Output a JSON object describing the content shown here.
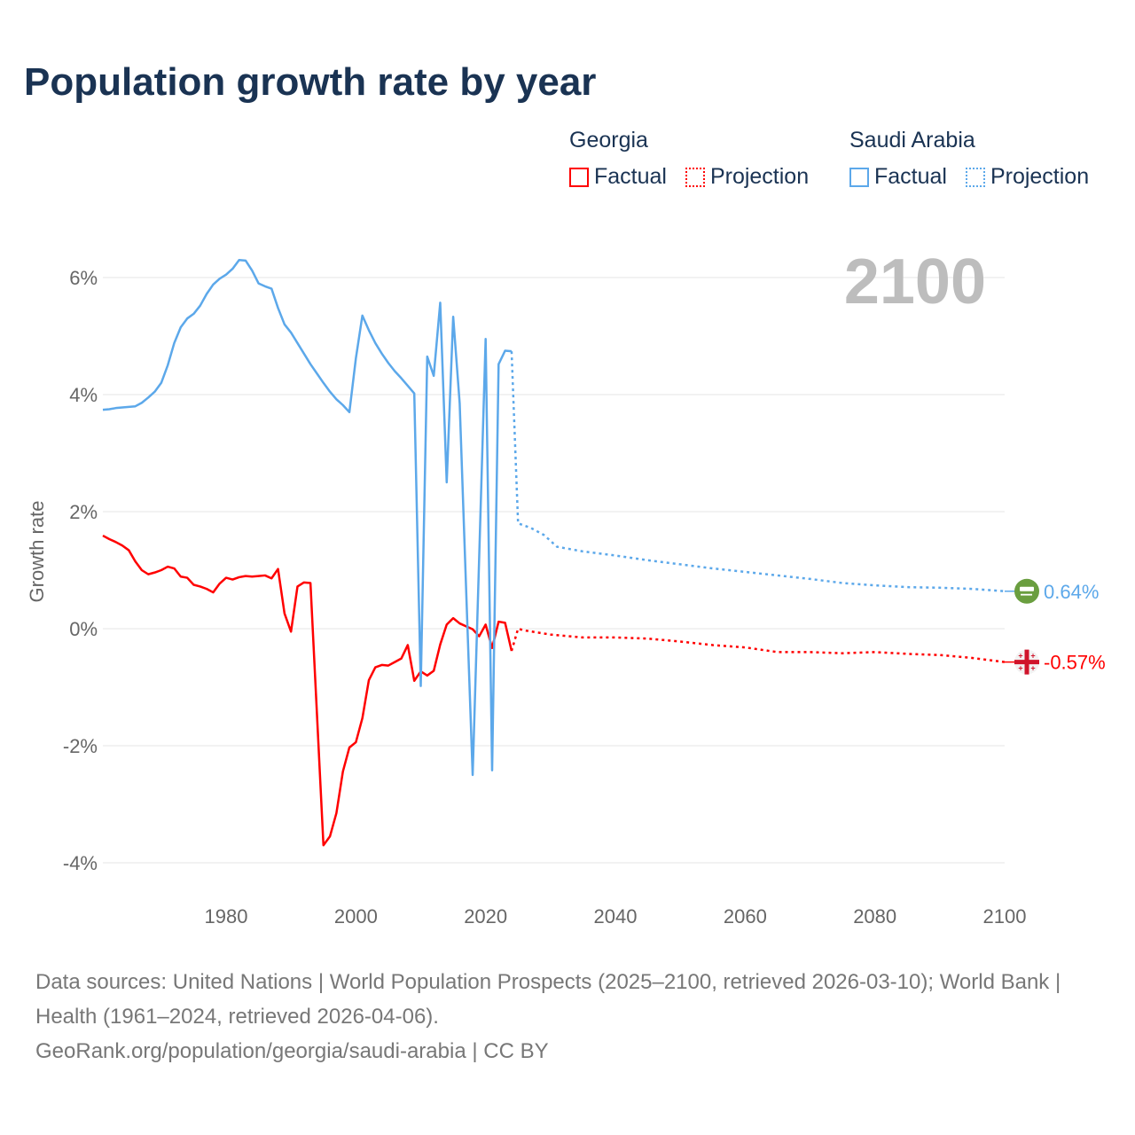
{
  "title": "Population growth rate by year",
  "legend": {
    "groups": [
      {
        "name": "Georgia",
        "factual": "Factual",
        "projection": "Projection",
        "color": "#ff0000"
      },
      {
        "name": "Saudi Arabia",
        "factual": "Factual",
        "projection": "Projection",
        "color": "#5ca8ea"
      }
    ]
  },
  "year_display": "2100",
  "footer": {
    "sources": "Data sources: United Nations | World Population Prospects (2025–2100, retrieved 2026-03-10); World Bank | Health (1961–2024, retrieved 2026-04-06).",
    "credit": "GeoRank.org/population/georgia/saudi-arabia | CC BY"
  },
  "chart_data": {
    "type": "line",
    "title": "Population growth rate by year",
    "xlabel": "",
    "ylabel": "Growth rate",
    "xlim": [
      1961,
      2100
    ],
    "ylim": [
      -4,
      6.5
    ],
    "x_ticks": [
      {
        "value": 1980,
        "label": "1980"
      },
      {
        "value": 2000,
        "label": "2000"
      },
      {
        "value": 2020,
        "label": "2020"
      },
      {
        "value": 2040,
        "label": "2040"
      },
      {
        "value": 2060,
        "label": "2060"
      },
      {
        "value": 2080,
        "label": "2080"
      },
      {
        "value": 2100,
        "label": "2100"
      }
    ],
    "y_ticks": [
      {
        "value": 6,
        "label": "6%"
      },
      {
        "value": 4,
        "label": "4%"
      },
      {
        "value": 2,
        "label": "2%"
      },
      {
        "value": 0,
        "label": "0%"
      },
      {
        "value": -2,
        "label": "-2%"
      },
      {
        "value": -4,
        "label": "-4%"
      }
    ],
    "grid": true,
    "legend_position": "top-right",
    "series": [
      {
        "name": "Georgia",
        "color": "#ff0000",
        "end_label": "-0.57%",
        "flag_icon": "georgia-flag-icon",
        "factual": {
          "start_year": 1961,
          "values": [
            1.59,
            1.53,
            1.48,
            1.42,
            1.34,
            1.15,
            1.0,
            0.93,
            0.96,
            1.0,
            1.06,
            1.03,
            0.89,
            0.87,
            0.75,
            0.72,
            0.68,
            0.62,
            0.77,
            0.87,
            0.84,
            0.88,
            0.9,
            0.89,
            0.9,
            0.91,
            0.86,
            1.02,
            0.26,
            -0.05,
            0.72,
            0.79,
            0.78,
            -1.46,
            -3.7,
            -3.55,
            -3.15,
            -2.44,
            -2.03,
            -1.94,
            -1.53,
            -0.88,
            -0.66,
            -0.62,
            -0.63,
            -0.57,
            -0.51,
            -0.28,
            -0.89,
            -0.73,
            -0.8,
            -0.72,
            -0.27,
            0.07,
            0.18,
            0.09,
            0.04,
            -0.01,
            -0.13,
            0.07,
            -0.33,
            0.12,
            0.1,
            -0.38
          ]
        },
        "projection": [
          [
            2025,
            0.0
          ],
          [
            2026,
            -0.03
          ],
          [
            2030,
            -0.1
          ],
          [
            2035,
            -0.15
          ],
          [
            2040,
            -0.15
          ],
          [
            2045,
            -0.17
          ],
          [
            2050,
            -0.22
          ],
          [
            2055,
            -0.28
          ],
          [
            2060,
            -0.32
          ],
          [
            2065,
            -0.4
          ],
          [
            2070,
            -0.4
          ],
          [
            2075,
            -0.42
          ],
          [
            2080,
            -0.4
          ],
          [
            2085,
            -0.43
          ],
          [
            2090,
            -0.45
          ],
          [
            2095,
            -0.5
          ],
          [
            2100,
            -0.57
          ]
        ]
      },
      {
        "name": "Saudi Arabia",
        "color": "#5ca8ea",
        "end_label": "0.64%",
        "flag_icon": "saudi-arabia-flag-icon",
        "factual": {
          "start_year": 1961,
          "values": [
            3.74,
            3.75,
            3.77,
            3.78,
            3.79,
            3.8,
            3.86,
            3.95,
            4.05,
            4.2,
            4.5,
            4.88,
            5.15,
            5.3,
            5.38,
            5.52,
            5.72,
            5.88,
            5.98,
            6.05,
            6.15,
            6.3,
            6.29,
            6.12,
            5.9,
            5.85,
            5.81,
            5.48,
            5.2,
            5.06,
            4.88,
            4.7,
            4.52,
            4.36,
            4.2,
            4.05,
            3.92,
            3.82,
            3.7,
            4.62,
            5.35,
            5.1,
            4.88,
            4.7,
            4.54,
            4.4,
            4.28,
            4.15,
            4.02,
            -0.98,
            4.65,
            4.32,
            5.57,
            2.5,
            5.33,
            3.85,
            0.65,
            -2.5,
            1.2,
            4.95,
            -2.42,
            4.52,
            4.75,
            4.74
          ]
        },
        "projection": [
          [
            2025,
            1.8
          ],
          [
            2027,
            1.72
          ],
          [
            2029,
            1.6
          ],
          [
            2031,
            1.4
          ],
          [
            2035,
            1.32
          ],
          [
            2040,
            1.25
          ],
          [
            2045,
            1.17
          ],
          [
            2050,
            1.1
          ],
          [
            2055,
            1.03
          ],
          [
            2060,
            0.97
          ],
          [
            2065,
            0.91
          ],
          [
            2070,
            0.85
          ],
          [
            2075,
            0.78
          ],
          [
            2080,
            0.74
          ],
          [
            2085,
            0.71
          ],
          [
            2090,
            0.7
          ],
          [
            2095,
            0.68
          ],
          [
            2100,
            0.64
          ]
        ]
      }
    ]
  }
}
